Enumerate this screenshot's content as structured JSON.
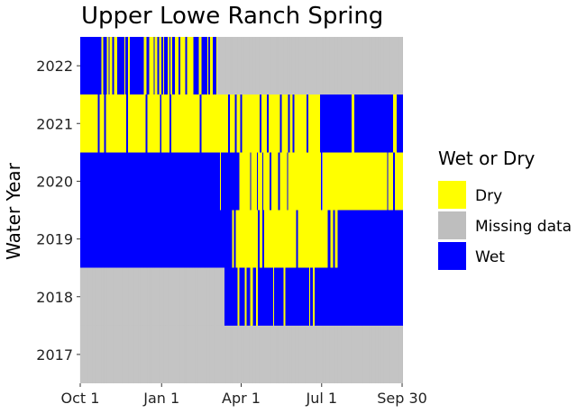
{
  "chart_data": {
    "type": "heatmap",
    "title": "Upper Lowe Ranch Spring",
    "xlabel": "",
    "ylabel": "Water Year",
    "x_ticks": [
      "Oct 1",
      "Jan 1",
      "Apr 1",
      "Jul 1",
      "Sep 30"
    ],
    "x_tick_days": [
      0,
      92,
      182,
      273,
      364
    ],
    "x_range_days": [
      0,
      365
    ],
    "rows": [
      {
        "year": "2022",
        "segments": [
          [
            "Wet",
            0,
            24
          ],
          [
            "Dry",
            24,
            26
          ],
          [
            "Wet",
            26,
            30
          ],
          [
            "Dry",
            30,
            32
          ],
          [
            "Wet",
            32,
            33
          ],
          [
            "Dry",
            33,
            36
          ],
          [
            "Wet",
            36,
            38
          ],
          [
            "Dry",
            38,
            42
          ],
          [
            "Wet",
            42,
            50
          ],
          [
            "Dry",
            50,
            51
          ],
          [
            "Wet",
            51,
            54
          ],
          [
            "Dry",
            54,
            56
          ],
          [
            "Wet",
            56,
            72
          ],
          [
            "Dry",
            72,
            75
          ],
          [
            "Wet",
            75,
            78
          ],
          [
            "Dry",
            78,
            83
          ],
          [
            "Wet",
            83,
            84
          ],
          [
            "Dry",
            84,
            87
          ],
          [
            "Wet",
            87,
            89
          ],
          [
            "Dry",
            89,
            92
          ],
          [
            "Wet",
            92,
            94
          ],
          [
            "Dry",
            94,
            95
          ],
          [
            "Wet",
            95,
            99
          ],
          [
            "Dry",
            99,
            101
          ],
          [
            "Wet",
            101,
            102
          ],
          [
            "Dry",
            102,
            104
          ],
          [
            "Wet",
            104,
            107
          ],
          [
            "Dry",
            107,
            111
          ],
          [
            "Wet",
            111,
            113
          ],
          [
            "Dry",
            113,
            119
          ],
          [
            "Wet",
            119,
            121
          ],
          [
            "Dry",
            121,
            128
          ],
          [
            "Wet",
            128,
            134
          ],
          [
            "Dry",
            134,
            137
          ],
          [
            "Wet",
            137,
            144
          ],
          [
            "Dry",
            144,
            145
          ],
          [
            "Wet",
            145,
            147
          ],
          [
            "Dry",
            147,
            150
          ],
          [
            "Wet",
            150,
            154
          ],
          [
            "Dry",
            154,
            155
          ],
          [
            "Missing data",
            155,
            365
          ]
        ]
      },
      {
        "year": "2021",
        "segments": [
          [
            "Dry",
            0,
            20
          ],
          [
            "Wet",
            20,
            22
          ],
          [
            "Dry",
            22,
            27
          ],
          [
            "Wet",
            27,
            29
          ],
          [
            "Dry",
            29,
            52
          ],
          [
            "Wet",
            52,
            54
          ],
          [
            "Dry",
            54,
            74
          ],
          [
            "Wet",
            74,
            76
          ],
          [
            "Dry",
            76,
            90
          ],
          [
            "Wet",
            90,
            92
          ],
          [
            "Dry",
            92,
            101
          ],
          [
            "Wet",
            101,
            103
          ],
          [
            "Dry",
            103,
            135
          ],
          [
            "Wet",
            135,
            137
          ],
          [
            "Dry",
            137,
            167
          ],
          [
            "Wet",
            167,
            169
          ],
          [
            "Dry",
            169,
            175
          ],
          [
            "Wet",
            175,
            177
          ],
          [
            "Dry",
            177,
            181
          ],
          [
            "Wet",
            181,
            183
          ],
          [
            "Dry",
            183,
            203
          ],
          [
            "Wet",
            203,
            205
          ],
          [
            "Dry",
            205,
            211
          ],
          [
            "Wet",
            211,
            213
          ],
          [
            "Dry",
            213,
            226
          ],
          [
            "Wet",
            226,
            228
          ],
          [
            "Dry",
            228,
            235
          ],
          [
            "Wet",
            235,
            237
          ],
          [
            "Dry",
            237,
            240
          ],
          [
            "Wet",
            240,
            242
          ],
          [
            "Dry",
            242,
            256
          ],
          [
            "Wet",
            256,
            258
          ],
          [
            "Dry",
            258,
            271
          ],
          [
            "Wet",
            271,
            307
          ],
          [
            "Dry",
            307,
            310
          ],
          [
            "Wet",
            310,
            354
          ],
          [
            "Dry",
            354,
            358
          ],
          [
            "Wet",
            358,
            365
          ]
        ]
      },
      {
        "year": "2020",
        "segments": [
          [
            "Wet",
            0,
            158
          ],
          [
            "Dry",
            158,
            159
          ],
          [
            "Wet",
            159,
            180
          ],
          [
            "Dry",
            180,
            192
          ],
          [
            "Wet",
            192,
            193
          ],
          [
            "Dry",
            193,
            200
          ],
          [
            "Wet",
            200,
            201
          ],
          [
            "Dry",
            201,
            206
          ],
          [
            "Wet",
            206,
            207
          ],
          [
            "Dry",
            207,
            214
          ],
          [
            "Wet",
            214,
            216
          ],
          [
            "Dry",
            216,
            224
          ],
          [
            "Wet",
            224,
            226
          ],
          [
            "Dry",
            226,
            234
          ],
          [
            "Wet",
            234,
            235
          ],
          [
            "Dry",
            235,
            272
          ],
          [
            "Wet",
            272,
            274
          ],
          [
            "Dry",
            274,
            347
          ],
          [
            "Wet",
            347,
            348
          ],
          [
            "Dry",
            348,
            354
          ],
          [
            "Wet",
            354,
            356
          ],
          [
            "Dry",
            356,
            365
          ]
        ]
      },
      {
        "year": "2019",
        "segments": [
          [
            "Wet",
            0,
            172
          ],
          [
            "Dry",
            172,
            174
          ],
          [
            "Wet",
            174,
            176
          ],
          [
            "Dry",
            176,
            201
          ],
          [
            "Wet",
            201,
            203
          ],
          [
            "Dry",
            203,
            206
          ],
          [
            "Wet",
            206,
            208
          ],
          [
            "Dry",
            208,
            244
          ],
          [
            "Wet",
            244,
            246
          ],
          [
            "Dry",
            246,
            280
          ],
          [
            "Wet",
            280,
            283
          ],
          [
            "Dry",
            283,
            286
          ],
          [
            "Wet",
            286,
            288
          ],
          [
            "Dry",
            288,
            291
          ],
          [
            "Wet",
            291,
            365
          ]
        ]
      },
      {
        "year": "2018",
        "segments": [
          [
            "Missing data",
            0,
            163
          ],
          [
            "Wet",
            163,
            178
          ],
          [
            "Dry",
            178,
            180
          ],
          [
            "Wet",
            180,
            186
          ],
          [
            "Dry",
            186,
            188
          ],
          [
            "Wet",
            188,
            192
          ],
          [
            "Dry",
            192,
            195
          ],
          [
            "Wet",
            195,
            199
          ],
          [
            "Dry",
            199,
            201
          ],
          [
            "Wet",
            201,
            218
          ],
          [
            "Dry",
            218,
            219
          ],
          [
            "Wet",
            219,
            230
          ],
          [
            "Dry",
            230,
            232
          ],
          [
            "Wet",
            232,
            259
          ],
          [
            "Dry",
            259,
            260
          ],
          [
            "Wet",
            260,
            263
          ],
          [
            "Dry",
            263,
            265
          ],
          [
            "Wet",
            265,
            365
          ]
        ]
      },
      {
        "year": "2017",
        "segments": [
          [
            "Missing data",
            0,
            365
          ]
        ]
      }
    ],
    "legend_title": "Wet or Dry",
    "legend": [
      {
        "label": "Dry",
        "color": "#FFFF00"
      },
      {
        "label": "Missing data",
        "color": "#BEBEBE"
      },
      {
        "label": "Wet",
        "color": "#0000FF"
      }
    ],
    "legend_position": "right",
    "grid": false
  }
}
